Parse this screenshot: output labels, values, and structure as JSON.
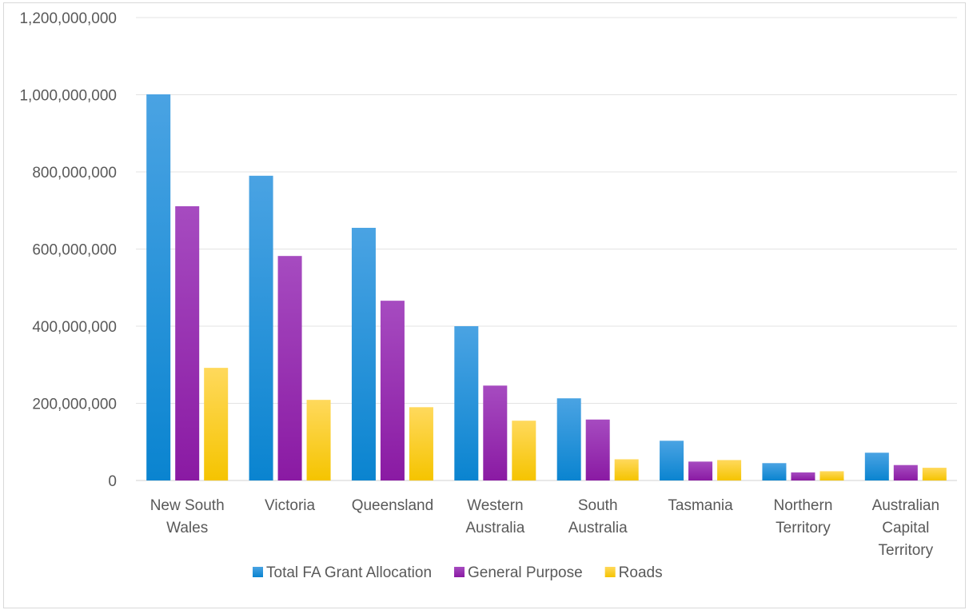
{
  "chart_data": {
    "type": "bar",
    "categories": [
      [
        "New South",
        "Wales"
      ],
      [
        "Victoria"
      ],
      [
        "Queensland"
      ],
      [
        "Western",
        "Australia"
      ],
      [
        "South",
        "Australia"
      ],
      [
        "Tasmania"
      ],
      [
        "Northern",
        "Territory"
      ],
      [
        "Australian",
        "Capital",
        "Territory"
      ]
    ],
    "series": [
      {
        "name": "Total FA Grant Allocation",
        "color_top": "#4aa3e3",
        "color_bottom": "#0a84d0",
        "values": [
          1001000000,
          790000000,
          655000000,
          400000000,
          213000000,
          103000000,
          45000000,
          72000000
        ]
      },
      {
        "name": "General Purpose",
        "color_top": "#a64bc0",
        "color_bottom": "#8a1aa3",
        "values": [
          711000000,
          582000000,
          466000000,
          246000000,
          158000000,
          49000000,
          21000000,
          40000000
        ]
      },
      {
        "name": "Roads",
        "color_top": "#ffd95c",
        "color_bottom": "#f5c400",
        "values": [
          292000000,
          209000000,
          190000000,
          155000000,
          55000000,
          53000000,
          24000000,
          33000000
        ]
      }
    ],
    "ylim": [
      0,
      1200000000
    ],
    "yticks": [
      "0",
      "200,000,000",
      "400,000,000",
      "600,000,000",
      "800,000,000",
      "1,000,000,000",
      "1,200,000,000"
    ],
    "grid": true,
    "legend_position": "bottom"
  }
}
